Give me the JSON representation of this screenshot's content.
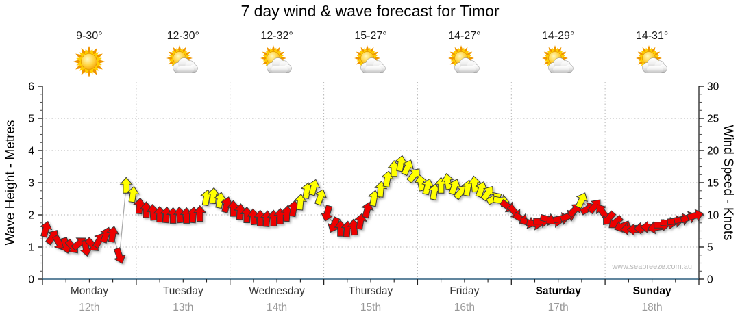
{
  "title": "7 day wind & wave forecast for Timor",
  "watermark": "www.seabreeze.com.au",
  "days": [
    {
      "name": "Monday",
      "date": "12th",
      "temp": "9-30°",
      "icon": "sunny",
      "weekend": false
    },
    {
      "name": "Tuesday",
      "date": "13th",
      "temp": "12-30°",
      "icon": "partly-cloudy",
      "weekend": false
    },
    {
      "name": "Wednesday",
      "date": "14th",
      "temp": "12-32°",
      "icon": "partly-cloudy",
      "weekend": false
    },
    {
      "name": "Thursday",
      "date": "15th",
      "temp": "15-27°",
      "icon": "partly-cloudy",
      "weekend": false
    },
    {
      "name": "Friday",
      "date": "16th",
      "temp": "14-27°",
      "icon": "partly-cloudy",
      "weekend": false
    },
    {
      "name": "Saturday",
      "date": "17th",
      "temp": "14-29°",
      "icon": "partly-cloudy",
      "weekend": true
    },
    {
      "name": "Sunday",
      "date": "18th",
      "temp": "14-31°",
      "icon": "partly-cloudy",
      "weekend": true
    }
  ],
  "chart_data": {
    "type": "wind-arrow-timeseries",
    "title": "7 day wind & wave forecast for Timor",
    "grid": true,
    "left_axis": {
      "label": "Wave Height - Metres",
      "min": 0,
      "max": 6,
      "major_ticks": [
        0,
        1,
        2,
        3,
        4,
        5,
        6
      ],
      "minor_step": 0.25
    },
    "right_axis": {
      "label": "Wind Speed - Knots",
      "min": 0,
      "max": 30,
      "major_ticks": [
        0,
        5,
        10,
        15,
        20,
        25,
        30
      ],
      "minor_step": 1.25
    },
    "x_axis": {
      "categories": [
        "Monday 12th",
        "Tuesday 13th",
        "Wednesday 14th",
        "Thursday 15th",
        "Friday 16th",
        "Saturday 17th",
        "Sunday 18th"
      ],
      "minor_divisions_per_day": 4
    },
    "points_per_day": 14,
    "series": {
      "name": "wind",
      "units": "knots",
      "speeds_knots": [
        7.8,
        6.6,
        5.6,
        5.2,
        5.0,
        5.6,
        4.8,
        5.3,
        6.1,
        6.9,
        7.0,
        3.6,
        14.6,
        13.2,
        11.4,
        10.8,
        10.4,
        10.1,
        10.0,
        9.9,
        10.0,
        9.9,
        10.0,
        10.2,
        12.7,
        13.0,
        12.3,
        11.6,
        11.0,
        10.5,
        10.0,
        9.7,
        9.5,
        9.4,
        9.5,
        9.8,
        10.2,
        11.0,
        12.0,
        13.8,
        14.3,
        12.8,
        10.2,
        8.4,
        7.9,
        7.8,
        8.1,
        9.0,
        10.8,
        12.6,
        14.0,
        15.6,
        17.2,
        18.0,
        17.4,
        16.2,
        15.0,
        14.4,
        13.6,
        14.6,
        15.2,
        14.4,
        13.6,
        14.2,
        14.8,
        14.0,
        13.4,
        12.6,
        12.2,
        11.3,
        10.4,
        9.4,
        8.8,
        8.6,
        9.0,
        9.3,
        9.0,
        9.4,
        9.8,
        10.8,
        12.3,
        11.0,
        11.4,
        10.6,
        9.4,
        8.8,
        8.2,
        7.8,
        7.7,
        7.9,
        8.1,
        8.0,
        8.4,
        8.7,
        9.0,
        9.3,
        9.6,
        9.9
      ],
      "directions_deg": [
        15,
        35,
        150,
        165,
        140,
        50,
        170,
        135,
        30,
        20,
        10,
        160,
        0,
        8,
        5,
        0,
        355,
        0,
        5,
        0,
        355,
        0,
        5,
        0,
        10,
        5,
        10,
        15,
        0,
        5,
        0,
        355,
        0,
        5,
        0,
        0,
        5,
        10,
        5,
        10,
        15,
        20,
        195,
        205,
        0,
        5,
        355,
        10,
        15,
        10,
        5,
        10,
        0,
        10,
        25,
        40,
        350,
        15,
        10,
        0,
        350,
        20,
        40,
        10,
        355,
        20,
        35,
        60,
        100,
        125,
        140,
        120,
        110,
        100,
        90,
        105,
        95,
        80,
        70,
        45,
        25,
        60,
        40,
        325,
        220,
        230,
        250,
        265,
        270,
        268,
        272,
        260,
        90,
        95,
        85,
        80,
        70,
        75
      ]
    },
    "color_rule": {
      "threshold_knots": 12,
      "below": "#ee0000",
      "at_or_above": "#ffff00"
    },
    "colors": {
      "arrow_light": "#ee0000",
      "arrow_moderate": "#ffff00",
      "arrow_outline": "#3a3a3a",
      "connector_line": "#a8a8a8",
      "gridline": "#b4b4b4",
      "x_axis_line": "#2d5e7e",
      "y_axis_line": "#111111",
      "tick_label": "#000000"
    }
  }
}
